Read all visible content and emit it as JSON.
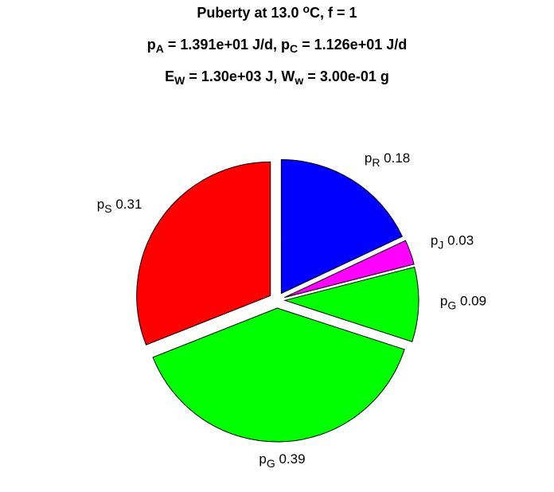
{
  "chart_data": {
    "type": "pie",
    "title_lines": [
      [
        "Puberty at 13.0 ",
        {
          "text": "o",
          "script": "sup"
        },
        "C, f = 1"
      ],
      [
        "p",
        {
          "text": "A",
          "script": "sub"
        },
        " = 1.391e+01 J/d,  p",
        {
          "text": "C",
          "script": "sub"
        },
        " = 1.126e+01 J/d"
      ],
      [
        "E",
        {
          "text": "W",
          "script": "sub"
        },
        " = 1.30e+03 J, W",
        {
          "text": "w",
          "script": "sub"
        },
        " = 3.00e-01 g"
      ]
    ],
    "categories": [
      {
        "text": "p",
        "sub": "R"
      },
      {
        "text": "p",
        "sub": "J"
      },
      {
        "text": "p",
        "sub": "G"
      },
      {
        "text": "p",
        "sub": "G"
      },
      {
        "text": "p",
        "sub": "S"
      }
    ],
    "values": [
      0.18,
      0.03,
      0.09,
      0.39,
      0.31
    ],
    "colors": [
      "#0000ff",
      "#ff00ff",
      "#00ff00",
      "#00ff00",
      "#ff0000"
    ],
    "explode": true
  }
}
